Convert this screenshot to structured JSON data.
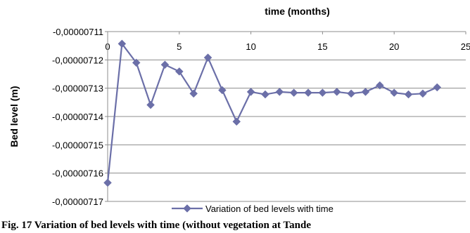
{
  "chart_data": {
    "type": "line",
    "title": "",
    "xlabel": "time (months)",
    "ylabel": "Bed level (m)",
    "xlim": [
      0,
      25
    ],
    "ylim": [
      -7.17e-06,
      -7.11e-06
    ],
    "x_ticks": [
      "0",
      "5",
      "10",
      "15",
      "20",
      "25"
    ],
    "y_ticks": [
      "-0,00000711",
      "-0,00000712",
      "-0,00000713",
      "-0,00000714",
      "-0,00000715",
      "-0,00000716",
      "-0,00000717"
    ],
    "grid": "horizontal",
    "legend_position": "bottom",
    "x_axis_position": "top",
    "series": [
      {
        "name": "Variation of bed levels with time",
        "color": "#6b6fa8",
        "marker": "diamond",
        "x": [
          0,
          1,
          2,
          3,
          4,
          5,
          6,
          7,
          8,
          9,
          10,
          11,
          12,
          13,
          14,
          15,
          16,
          17,
          18,
          19,
          20,
          21,
          22,
          23
        ],
        "y": [
          -7.1634e-06,
          -7.1143e-06,
          -7.121e-06,
          -7.1359e-06,
          -7.1217e-06,
          -7.1241e-06,
          -7.1319e-06,
          -7.1192e-06,
          -7.1307e-06,
          -7.1418e-06,
          -7.1313e-06,
          -7.1322e-06,
          -7.1313e-06,
          -7.1316e-06,
          -7.1316e-06,
          -7.1316e-06,
          -7.1313e-06,
          -7.1319e-06,
          -7.1313e-06,
          -7.129e-06,
          -7.1316e-06,
          -7.1322e-06,
          -7.1319e-06,
          -7.1297e-06
        ]
      }
    ]
  },
  "caption": {
    "text": "Fig. 17 Variation of bed levels with time (without vegetation at Tande"
  }
}
